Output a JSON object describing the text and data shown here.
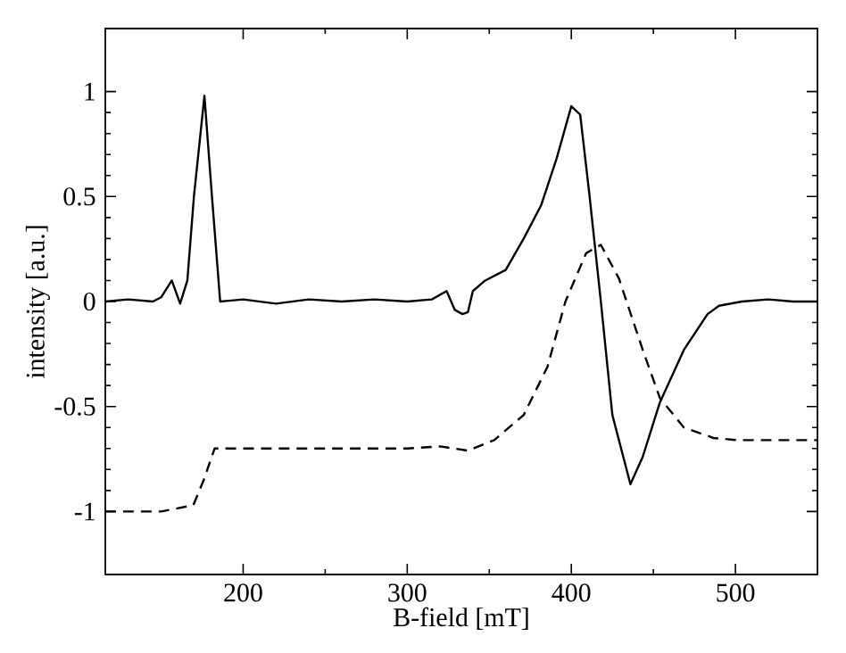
{
  "chart_data": {
    "type": "line",
    "xlabel": "B-field [mT]",
    "ylabel": "intensity [a.u.]",
    "xlim": [
      116,
      550
    ],
    "ylim": [
      -1.3,
      1.3
    ],
    "xticks": [
      200,
      300,
      400,
      500
    ],
    "yticks": [
      -1,
      -0.5,
      0,
      0.5,
      1
    ],
    "grid": false,
    "marker": "none",
    "series": [
      {
        "color": "#000000",
        "line_style": "solid",
        "x": [
          116,
          130,
          145,
          150,
          156.5,
          161.6,
          166,
          170,
          176.4,
          181,
          186,
          200,
          220,
          240,
          260,
          280,
          300,
          315,
          324,
          329,
          333.7,
          337,
          340,
          347.5,
          360,
          371,
          381.7,
          391,
          400,
          405.4,
          411,
          418,
          425,
          436,
          443.5,
          454,
          468.6,
          483,
          490,
          504,
          520,
          535,
          550
        ],
        "values": [
          0,
          0.01,
          0,
          0.02,
          0.1,
          -0.01,
          0.1,
          0.5,
          0.98,
          0.5,
          0,
          0.01,
          -0.01,
          0.01,
          0,
          0.01,
          0,
          0.01,
          0.05,
          -0.04,
          -0.06,
          -0.05,
          0.05,
          0.1,
          0.15,
          0.3,
          0.46,
          0.68,
          0.93,
          0.89,
          0.51,
          0,
          -0.54,
          -0.87,
          -0.74,
          -0.48,
          -0.23,
          -0.06,
          -0.02,
          0,
          0.01,
          0,
          0
        ]
      },
      {
        "color": "#000000",
        "line_style": "dashed",
        "x": [
          116,
          150,
          169.6,
          176,
          182.6,
          200,
          250,
          300,
          320,
          337,
          353,
          371,
          385.5,
          396.4,
          409,
          418,
          429,
          443.5,
          454,
          468.6,
          486.7,
          501,
          550
        ],
        "values": [
          -1,
          -1,
          -0.97,
          -0.85,
          -0.7,
          -0.7,
          -0.7,
          -0.7,
          -0.69,
          -0.71,
          -0.66,
          -0.54,
          -0.31,
          0,
          0.23,
          0.27,
          0.11,
          -0.23,
          -0.46,
          -0.6,
          -0.65,
          -0.66,
          -0.66
        ]
      }
    ]
  }
}
